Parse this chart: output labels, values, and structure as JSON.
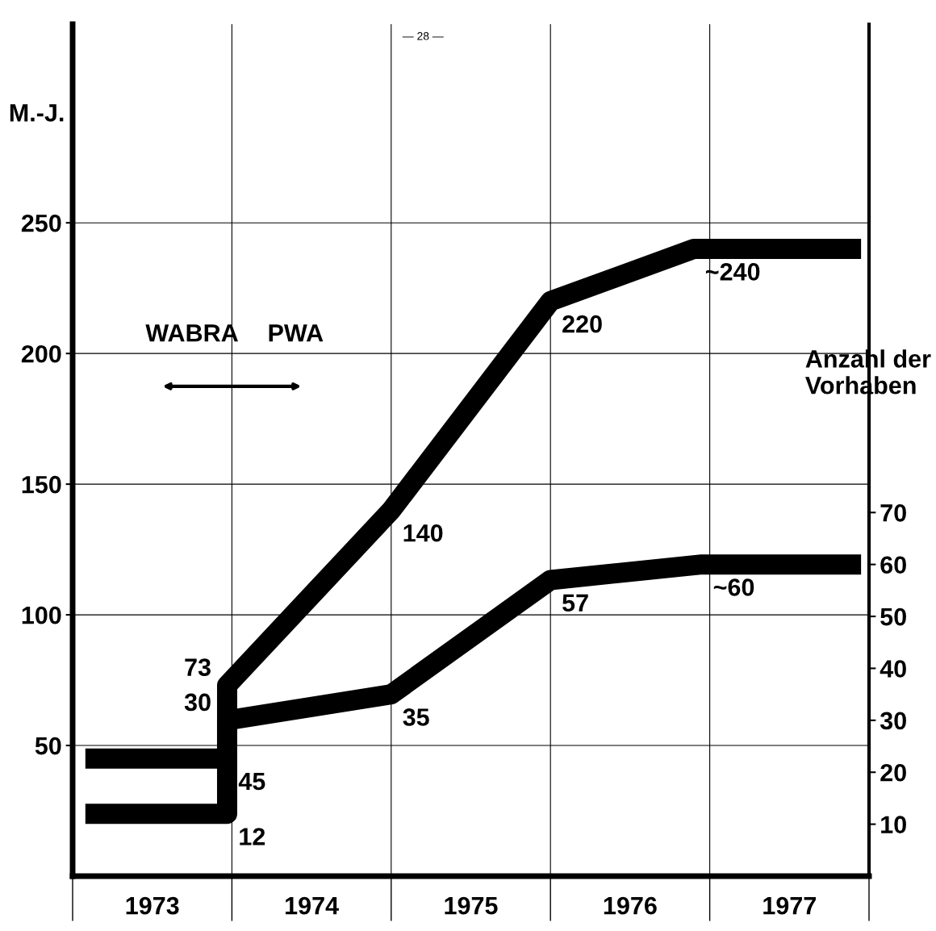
{
  "chart_data": {
    "type": "line",
    "ylabel": "M.-J.",
    "y2label": "Anzahl der Vorhaben",
    "annotations": [
      "— 28 —",
      "WABRA",
      "PWA"
    ],
    "xlim": [
      1973,
      1978
    ],
    "xticks": [
      {
        "value": 1973,
        "label": null
      },
      {
        "value": 1973.5,
        "label": "1973"
      },
      {
        "value": 1974,
        "label": null
      },
      {
        "value": 1974.5,
        "label": "1974"
      },
      {
        "value": 1975,
        "label": null
      },
      {
        "value": 1975.5,
        "label": "1975"
      },
      {
        "value": 1976,
        "label": null
      },
      {
        "value": 1976.5,
        "label": "1976"
      },
      {
        "value": 1977,
        "label": null
      },
      {
        "value": 1977.5,
        "label": "1977"
      },
      {
        "value": 1978,
        "label": null
      }
    ],
    "ylim": [
      0,
      326
    ],
    "yticks": [
      50,
      100,
      150,
      200,
      250
    ],
    "y2lim": [
      0,
      164
    ],
    "y2ticks": [
      10,
      20,
      30,
      40,
      50,
      60,
      70
    ],
    "grid": true,
    "marker": "none",
    "line_style": "solid",
    "series": [
      {
        "color": "#000000",
        "x": [
          1973.08,
          1973.97,
          1973.97,
          1975.0,
          1976.0,
          1976.9,
          1977.95
        ],
        "values": [
          45,
          45,
          73,
          140,
          220,
          240,
          240
        ],
        "value_labels": [
          null,
          "45",
          "73",
          "140",
          "220",
          "~240",
          null
        ]
      },
      {
        "color": "#000000",
        "axis": "y2",
        "x": [
          1973.08,
          1973.97,
          1973.97,
          1975.0,
          1976.0,
          1976.95,
          1977.95
        ],
        "values": [
          12,
          12,
          30,
          35,
          57,
          60,
          60
        ],
        "value_labels": [
          null,
          "12",
          "30",
          "35",
          "57",
          "~60",
          null
        ]
      }
    ]
  }
}
